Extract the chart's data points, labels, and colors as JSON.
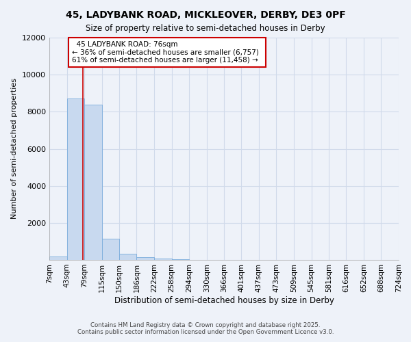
{
  "title_line1": "45, LADYBANK ROAD, MICKLEOVER, DERBY, DE3 0PF",
  "title_line2": "Size of property relative to semi-detached houses in Derby",
  "xlabel": "Distribution of semi-detached houses by size in Derby",
  "ylabel": "Number of semi-detached properties",
  "property_label": "45 LADYBANK ROAD: 76sqm",
  "smaller_text": "← 36% of semi-detached houses are smaller (6,757)",
  "larger_text": "61% of semi-detached houses are larger (11,458) →",
  "property_size": 76,
  "bin_edges": [
    7,
    43,
    79,
    115,
    150,
    186,
    222,
    258,
    294,
    330,
    366,
    401,
    437,
    473,
    509,
    545,
    581,
    616,
    652,
    688,
    724
  ],
  "bar_heights": [
    200,
    8700,
    8400,
    1150,
    350,
    150,
    80,
    20,
    10,
    5,
    2,
    1,
    1,
    0,
    0,
    0,
    0,
    0,
    0,
    0
  ],
  "bar_color": "#c8d9ef",
  "bar_edge_color": "#7aacdc",
  "red_line_color": "#cc0000",
  "annotation_box_edge": "#cc0000",
  "grid_color": "#d0daea",
  "background_color": "#eef2f9",
  "ylim": [
    0,
    12000
  ],
  "yticks": [
    0,
    2000,
    4000,
    6000,
    8000,
    10000,
    12000
  ],
  "footer_line1": "Contains HM Land Registry data © Crown copyright and database right 2025.",
  "footer_line2": "Contains public sector information licensed under the Open Government Licence v3.0."
}
